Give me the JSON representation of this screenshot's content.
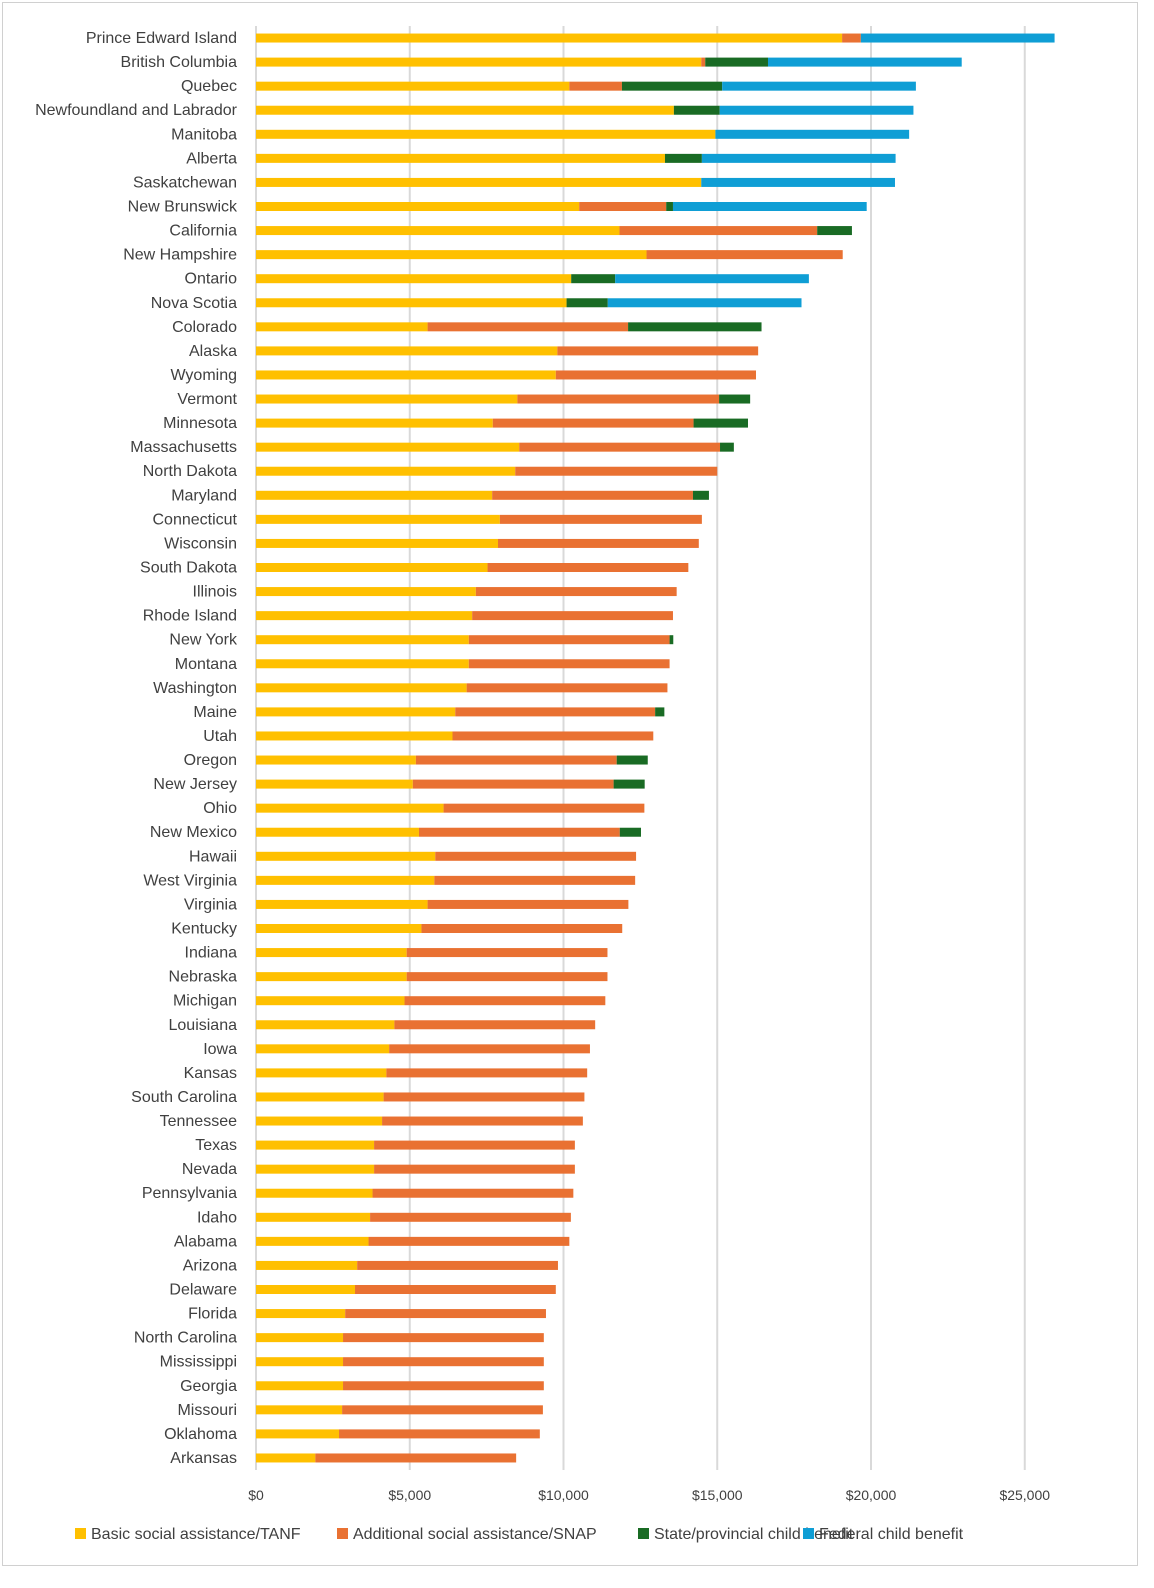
{
  "chart_data": {
    "type": "bar",
    "orientation": "horizontal",
    "stacked": true,
    "title": "",
    "xlabel": "",
    "ylabel": "",
    "xlim": [
      0,
      27000
    ],
    "xticks": [
      0,
      5000,
      10000,
      15000,
      20000,
      25000
    ],
    "xtick_labels": [
      "$0",
      "$5,000",
      "$10,000",
      "$15,000",
      "$20,000",
      "$25,000"
    ],
    "grid": "vertical",
    "legend_position": "bottom",
    "categories": [
      "Prince Edward Island",
      "British Columbia",
      "Quebec",
      "Newfoundland and Labrador",
      "Manitoba",
      "Alberta",
      "Saskatchewan",
      "New Brunswick",
      "California",
      "New Hampshire",
      "Ontario",
      "Nova Scotia",
      "Colorado",
      "Alaska",
      "Wyoming",
      "Vermont",
      "Minnesota",
      "Massachusetts",
      "North Dakota",
      "Maryland",
      "Connecticut",
      "Wisconsin",
      "South Dakota",
      "Illinois",
      "Rhode Island",
      "New York",
      "Montana",
      "Washington",
      "Maine",
      "Utah",
      "Oregon",
      "New Jersey",
      "Ohio",
      "New Mexico",
      "Hawaii",
      "West Virginia",
      "Virginia",
      "Kentucky",
      "Indiana",
      "Nebraska",
      "Michigan",
      "Louisiana",
      "Iowa",
      "Kansas",
      "South Carolina",
      "Tennessee",
      "Texas",
      "Nevada",
      "Pennsylvania",
      "Idaho",
      "Alabama",
      "Arizona",
      "Delaware",
      "Florida",
      "North Carolina",
      "Mississippi",
      "Georgia",
      "Missouri",
      "Oklahoma",
      "Arkansas"
    ],
    "series": [
      {
        "name": "Basic social assistance/TANF",
        "color": "#FFC000",
        "values": [
          19060,
          14480,
          10190,
          13590,
          14940,
          13300,
          14480,
          10510,
          11820,
          12700,
          10250,
          10100,
          5580,
          9800,
          9750,
          8500,
          7700,
          8560,
          8430,
          7680,
          7930,
          7870,
          7530,
          7150,
          7030,
          6920,
          6920,
          6850,
          6480,
          6390,
          5200,
          5100,
          6100,
          5300,
          5830,
          5800,
          5580,
          5380,
          4900,
          4900,
          4830,
          4500,
          4330,
          4240,
          4150,
          4100,
          3840,
          3840,
          3790,
          3710,
          3660,
          3290,
          3220,
          2900,
          2830,
          2830,
          2830,
          2800,
          2700,
          1930
        ]
      },
      {
        "name": "Additional social assistance/SNAP",
        "color": "#E97132",
        "values": [
          610,
          130,
          1710,
          0,
          0,
          0,
          0,
          2830,
          6430,
          6380,
          0,
          0,
          6520,
          6530,
          6510,
          6560,
          6530,
          6530,
          6570,
          6530,
          6570,
          6530,
          6530,
          6530,
          6530,
          6530,
          6530,
          6530,
          6500,
          6530,
          6530,
          6530,
          6530,
          6530,
          6530,
          6530,
          6530,
          6530,
          6530,
          6530,
          6530,
          6530,
          6530,
          6530,
          6530,
          6530,
          6530,
          6530,
          6530,
          6530,
          6530,
          6530,
          6530,
          6530,
          6530,
          6530,
          6530,
          6530,
          6530,
          6530
        ]
      },
      {
        "name": "State/provincial child benefit",
        "color": "#196B24",
        "values": [
          0,
          2040,
          3260,
          1490,
          0,
          1200,
          0,
          220,
          1130,
          0,
          1430,
          1340,
          4340,
          0,
          0,
          1010,
          1770,
          450,
          0,
          520,
          0,
          0,
          0,
          0,
          0,
          120,
          0,
          0,
          300,
          0,
          1010,
          1010,
          0,
          690,
          0,
          0,
          0,
          0,
          0,
          0,
          0,
          0,
          0,
          0,
          0,
          0,
          0,
          0,
          0,
          0,
          0,
          0,
          0,
          0,
          0,
          0,
          0,
          0,
          0,
          0
        ]
      },
      {
        "name": "Federal child benefit",
        "color": "#0F9ED5",
        "values": [
          6300,
          6300,
          6300,
          6300,
          6300,
          6300,
          6300,
          6300,
          0,
          0,
          6300,
          6300,
          0,
          0,
          0,
          0,
          0,
          0,
          0,
          0,
          0,
          0,
          0,
          0,
          0,
          0,
          0,
          0,
          0,
          0,
          0,
          0,
          0,
          0,
          0,
          0,
          0,
          0,
          0,
          0,
          0,
          0,
          0,
          0,
          0,
          0,
          0,
          0,
          0,
          0,
          0,
          0,
          0,
          0,
          0,
          0,
          0,
          0,
          0,
          0
        ]
      }
    ]
  }
}
